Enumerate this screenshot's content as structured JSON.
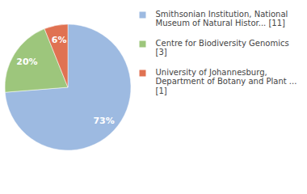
{
  "chart_data": {
    "type": "pie",
    "categories": [
      "Smithsonian Institution, National Museum of Natural Histor... [11]",
      "Centre for Biodiversity Genomics [3]",
      "University of Johannesburg, Department of Botany and Plant ... [1]"
    ],
    "values": [
      73,
      20,
      6
    ],
    "value_labels": [
      "73%",
      "20%",
      "6%"
    ],
    "colors": [
      "#9dbae1",
      "#9dc67c",
      "#e07252"
    ],
    "data_labels": true,
    "legend": "top-right"
  }
}
